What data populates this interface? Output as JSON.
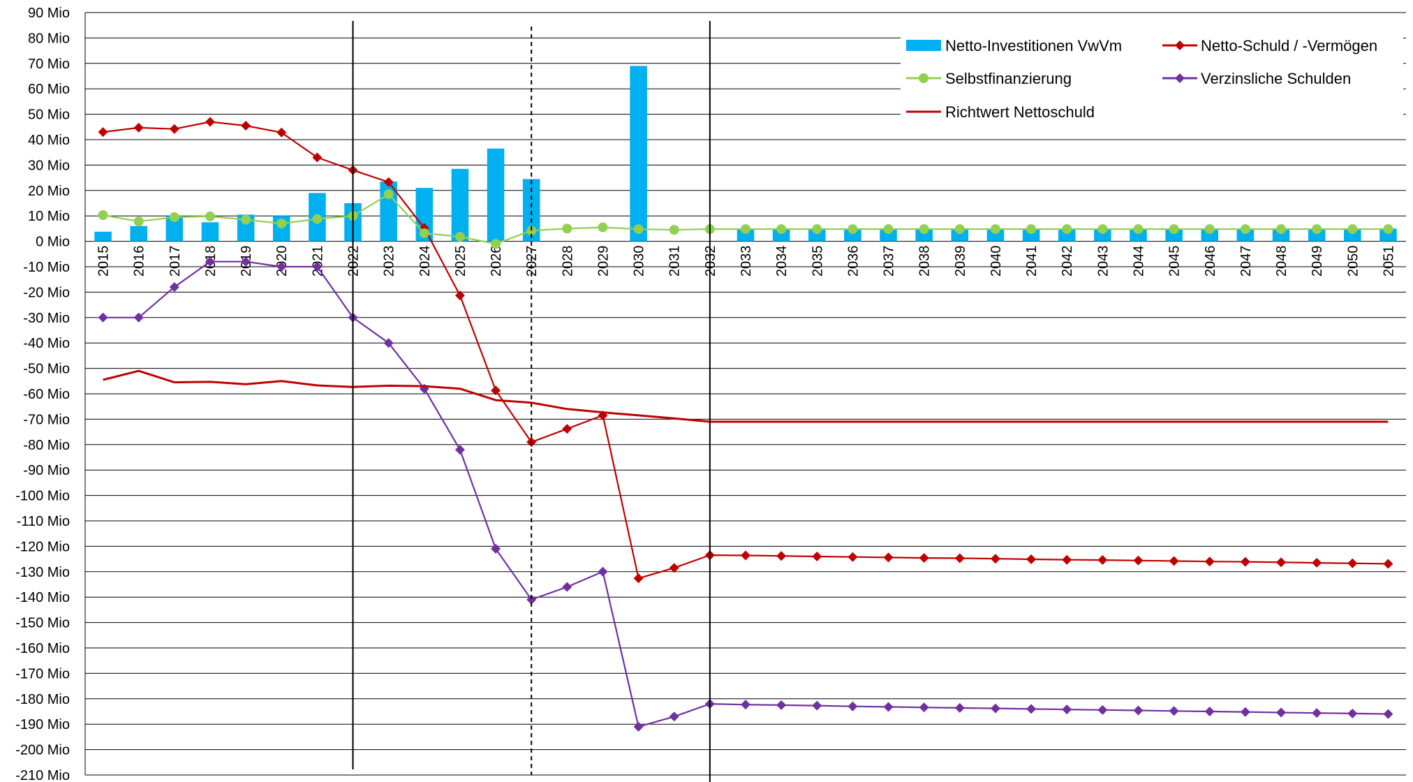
{
  "chart_data": {
    "type": "bar",
    "title": "",
    "xlabel": "",
    "ylabel": "",
    "ylim": [
      -210,
      90
    ],
    "y_unit_suffix": " Mio",
    "y_ticks": [
      "90 Mio",
      "80 Mio",
      "70 Mio",
      "60 Mio",
      "50 Mio",
      "40 Mio",
      "30 Mio",
      "20 Mio",
      "10 Mio",
      "0 Mio",
      "-10 Mio",
      "-20 Mio",
      "-30 Mio",
      "-40 Mio",
      "-50 Mio",
      "-60 Mio",
      "-70 Mio",
      "-80 Mio",
      "-90 Mio",
      "-100 Mio",
      "-110 Mio",
      "-120 Mio",
      "-130 Mio",
      "-140 Mio",
      "-150 Mio",
      "-160 Mio",
      "-170 Mio",
      "-180 Mio",
      "-190 Mio",
      "-200 Mio",
      "-210 Mio"
    ],
    "categories": [
      "2015",
      "2016",
      "2017",
      "2018",
      "2019",
      "2020",
      "2021",
      "2022",
      "2023",
      "2024",
      "2025",
      "2026",
      "2027",
      "2028",
      "2029",
      "2030",
      "2031",
      "2032",
      "2033",
      "2034",
      "2035",
      "2036",
      "2037",
      "2038",
      "2039",
      "2040",
      "2041",
      "2042",
      "2043",
      "2044",
      "2045",
      "2046",
      "2047",
      "2048",
      "2049",
      "2050",
      "2051"
    ],
    "grid": true,
    "legend_position": "top-right",
    "vertical_markers": [
      {
        "category": "2022",
        "style": "solid"
      },
      {
        "category": "2027",
        "style": "dashed"
      },
      {
        "category": "2032",
        "style": "solid"
      }
    ],
    "series": [
      {
        "name": "Netto-Investitionen VwVm",
        "kind": "bar",
        "color": "#00b0f0",
        "values": [
          3.8,
          6.0,
          10.0,
          7.5,
          10.5,
          10.0,
          19.0,
          15.0,
          23.5,
          21.0,
          28.5,
          36.5,
          24.5,
          0,
          0,
          69.0,
          0,
          0,
          5.0,
          5.0,
          5.0,
          5.0,
          5.0,
          5.0,
          5.0,
          5.0,
          5.0,
          5.0,
          5.0,
          5.0,
          5.0,
          5.0,
          5.0,
          5.0,
          5.0,
          5.0,
          5.0
        ]
      },
      {
        "name": "Netto-Schuld / -Vermögen",
        "kind": "line",
        "marker": "diamond",
        "color": "#c00000",
        "values": [
          43.0,
          44.7,
          44.2,
          47.0,
          45.5,
          42.8,
          33.0,
          28.0,
          23.3,
          5.2,
          -21.3,
          -58.7,
          -79.0,
          -73.8,
          -68.5,
          -132.6,
          -128.5,
          -123.5,
          -123.6,
          -123.8,
          -124.0,
          -124.2,
          -124.4,
          -124.6,
          -124.7,
          -124.9,
          -125.1,
          -125.3,
          -125.4,
          -125.6,
          -125.8,
          -126.0,
          -126.1,
          -126.3,
          -126.5,
          -126.7,
          -126.9
        ]
      },
      {
        "name": "Selbstfinanzierung",
        "kind": "line",
        "marker": "circle",
        "color": "#92d050",
        "values": [
          10.3,
          7.8,
          9.5,
          9.8,
          8.5,
          7.0,
          8.8,
          10.0,
          18.5,
          3.2,
          1.8,
          -1.0,
          4.2,
          5.0,
          5.5,
          4.8,
          4.5,
          4.8,
          4.8,
          4.8,
          4.8,
          4.8,
          4.8,
          4.8,
          4.8,
          4.8,
          4.8,
          4.8,
          4.8,
          4.8,
          4.8,
          4.8,
          4.8,
          4.8,
          4.8,
          4.8,
          4.8
        ]
      },
      {
        "name": "Verzinsliche Schulden",
        "kind": "line",
        "marker": "diamond",
        "color": "#7030a0",
        "values": [
          -30.0,
          -30.0,
          -18.0,
          -8.0,
          -8.0,
          -10.0,
          -10.0,
          -30.0,
          -40.0,
          -58.0,
          -82.0,
          -121.0,
          -141.0,
          -136.0,
          -130.0,
          -191.0,
          -187.0,
          -182.0,
          -182.3,
          -182.5,
          -182.7,
          -183.0,
          -183.2,
          -183.4,
          -183.6,
          -183.8,
          -184.0,
          -184.2,
          -184.4,
          -184.6,
          -184.8,
          -185.0,
          -185.2,
          -185.4,
          -185.6,
          -185.8,
          -186.0
        ]
      },
      {
        "name": "Richtwert Nettoschuld",
        "kind": "line",
        "marker": "none",
        "color": "#c00000",
        "values": [
          -54.5,
          -51.0,
          -55.5,
          -55.3,
          -56.2,
          -55.0,
          -56.7,
          -57.3,
          -56.8,
          -57.0,
          -58.0,
          -62.5,
          -63.5,
          -66.0,
          -67.3,
          -68.5,
          -69.7,
          -71.0,
          -71.0,
          -71.0,
          -71.0,
          -71.0,
          -71.0,
          -71.0,
          -71.0,
          -71.0,
          -71.0,
          -71.0,
          -71.0,
          -71.0,
          -71.0,
          -71.0,
          -71.0,
          -71.0,
          -71.0,
          -71.0,
          -71.0
        ]
      }
    ]
  },
  "legend": {
    "items": [
      {
        "label": "Netto-Investitionen VwVm",
        "color": "#00b0f0",
        "kind": "bar"
      },
      {
        "label": "Netto-Schuld / -Vermögen",
        "color": "#c00000",
        "kind": "line-diamond"
      },
      {
        "label": "Selbstfinanzierung",
        "color": "#92d050",
        "kind": "line-circle"
      },
      {
        "label": "Verzinsliche Schulden",
        "color": "#7030a0",
        "kind": "line-diamond"
      },
      {
        "label": "Richtwert Nettoschuld",
        "color": "#c00000",
        "kind": "line"
      }
    ]
  }
}
